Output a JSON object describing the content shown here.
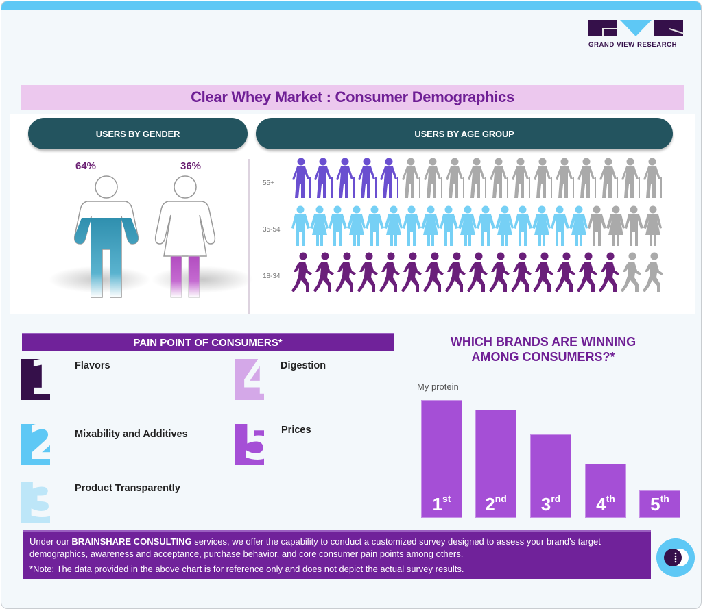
{
  "logo": {
    "text": "GRAND VIEW RESEARCH"
  },
  "title": "Clear Whey Market : Consumer Demographics",
  "gender": {
    "header": "USERS BY GENDER",
    "male": {
      "percent": "64%",
      "fill_color": "#3a9ab8"
    },
    "female": {
      "percent": "36%",
      "fill_color": "#c056c9"
    }
  },
  "age": {
    "header": "USERS BY AGE GROUP",
    "rows": [
      {
        "label": "55+",
        "icon": "elderly-with-cane-icon",
        "filled": 5,
        "total": 17,
        "color": "#6a4fd0"
      },
      {
        "label": "35-54",
        "icon": "couple-holding-hands-icon",
        "filled": 16,
        "total": 20,
        "color": "#76d0f5"
      },
      {
        "label": "18-34",
        "icon": "walking-person-icon",
        "filled": 15,
        "total": 17,
        "color": "#6a1f7a"
      }
    ],
    "empty_color": "#aaaaaa"
  },
  "pain_points": {
    "header": "PAIN POINT OF CONSUMERS*",
    "items": [
      {
        "number": "1",
        "label": "Flavors",
        "color": "#35104a"
      },
      {
        "number": "2",
        "label": "Mixability and Additives",
        "color": "#5ec8f5"
      },
      {
        "number": "3",
        "label": "Product Transparently",
        "color": "#bde6f8"
      },
      {
        "number": "4",
        "label": "Digestion",
        "color": "#d4a8e8"
      },
      {
        "number": "5",
        "label": "Prices",
        "color": "#a54fd6"
      }
    ]
  },
  "brands": {
    "title_line1": "WHICH BRANDS ARE WINNING",
    "title_line2": "AMONG CONSUMERS?*",
    "top_brand": "My protein",
    "ranks": [
      {
        "num": "1",
        "suffix": "st"
      },
      {
        "num": "2",
        "suffix": "nd"
      },
      {
        "num": "3",
        "suffix": "rd"
      },
      {
        "num": "4",
        "suffix": "th"
      },
      {
        "num": "5",
        "suffix": "th"
      }
    ]
  },
  "chart_data": {
    "type": "bar",
    "title": "WHICH BRANDS ARE WINNING AMONG CONSUMERS?*",
    "categories": [
      "1st",
      "2nd",
      "3rd",
      "4th",
      "5th"
    ],
    "values": [
      100,
      92,
      71,
      46,
      23
    ],
    "annotations": [
      "My protein"
    ],
    "xlabel": "",
    "ylabel": "",
    "grid": false
  },
  "footer": {
    "line1_pre": "Under our ",
    "line1_bold": "BRAINSHARE CONSULTING",
    "line1_post": " services, we offer the capability to conduct a customized survey designed to assess your brand's target demographics, awareness and acceptance, purchase behavior, and core consumer pain points among others.",
    "note": "*Note: The data provided in the above chart is for reference only and does not depict the actual survey results."
  }
}
